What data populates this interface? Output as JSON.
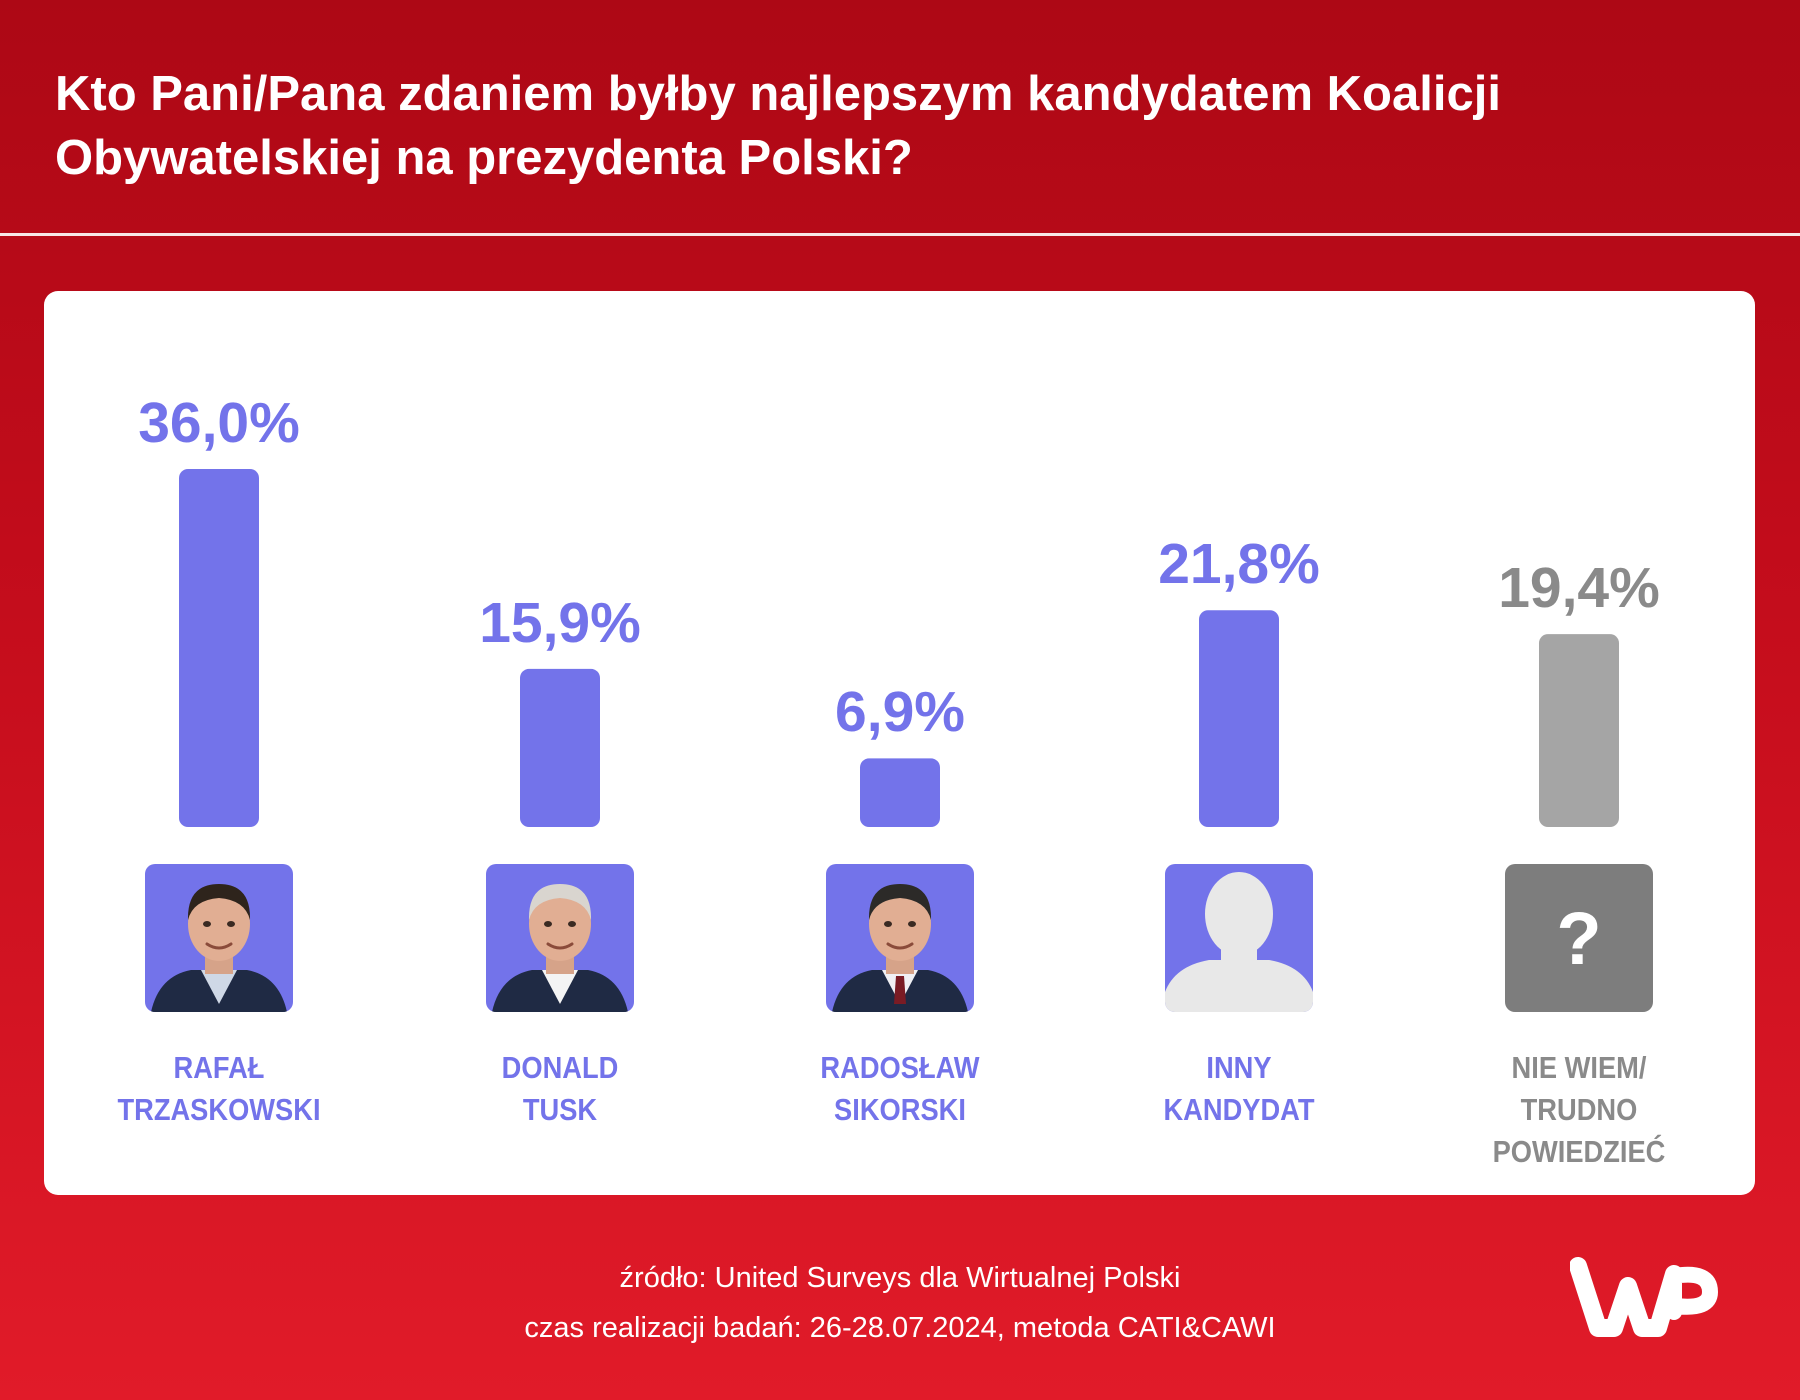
{
  "title": "Kto Pani/Pana zdaniem byłby najlepszym kandydatem Koalicji Obywatelskiej na prezydenta Polski?",
  "chart_data": {
    "type": "bar",
    "title": "Kto Pani/Pana zdaniem byłby najlepszym kandydatem Koalicji Obywatelskiej na prezydenta Polski?",
    "categories": [
      [
        "RAFAŁ",
        "TRZASKOWSKI"
      ],
      [
        "DONALD",
        "TUSK"
      ],
      [
        "RADOSŁAW",
        "SIKORSKI"
      ],
      [
        "INNY",
        "KANDYDAT"
      ],
      [
        "NIE WIEM/",
        "TRUDNO",
        "POWIEDZIEĆ"
      ]
    ],
    "values": [
      36.0,
      15.9,
      6.9,
      21.8,
      19.4
    ],
    "value_labels": [
      "36,0%",
      "15,9%",
      "6,9%",
      "21,8%",
      "19,4%"
    ],
    "colors": [
      "#7373ea",
      "#7373ea",
      "#7373ea",
      "#7373ea",
      "#a5a5a5"
    ],
    "label_colors": [
      "#7373ea",
      "#7373ea",
      "#7373ea",
      "#7373ea",
      "#8a8a8a"
    ],
    "icons": [
      "photo-trzaskowski",
      "photo-tusk",
      "photo-sikorski",
      "person-silhouette-icon",
      "question-mark-icon"
    ],
    "ylim": [
      0,
      36
    ],
    "grid": false,
    "legend": "none"
  },
  "footer": {
    "source": "źródło: United Surveys dla Wirtualnej Polski",
    "timing": "czas realizacji badań: 26-28.07.2024, metoda CATI&CAWI"
  },
  "logo": {
    "name": "wp-logo"
  }
}
